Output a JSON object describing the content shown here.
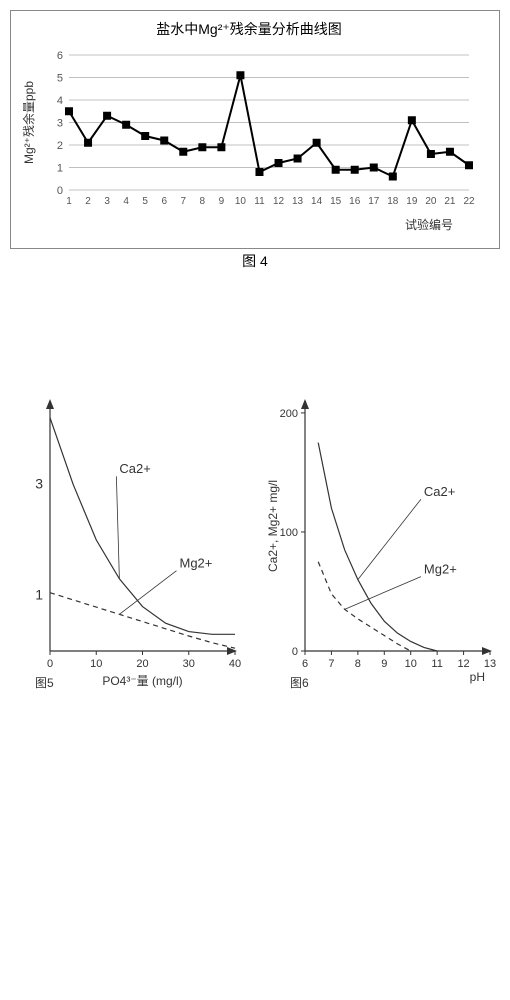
{
  "chart1": {
    "type": "line",
    "title": "盐水中Mg²⁺残余量分析曲线图",
    "ylabel": "Mg²⁺残余量ppb",
    "xlabel": "试验编号",
    "caption": "图 4",
    "xvalues": [
      1,
      2,
      3,
      4,
      5,
      6,
      7,
      8,
      9,
      10,
      11,
      12,
      13,
      14,
      15,
      16,
      17,
      18,
      19,
      20,
      21,
      22
    ],
    "yvalues": [
      3.5,
      2.1,
      3.3,
      2.9,
      2.4,
      2.2,
      1.7,
      1.9,
      1.9,
      5.1,
      0.8,
      1.2,
      1.4,
      2.1,
      0.9,
      0.9,
      1.0,
      0.6,
      3.1,
      1.6,
      1.7,
      1.1
    ],
    "ylim": [
      0,
      6
    ],
    "yticks": [
      0,
      1,
      2,
      3,
      4,
      5,
      6
    ],
    "line_color": "#000000",
    "marker": "square",
    "marker_size": 8,
    "line_width": 2,
    "grid_color": "#c0c0c0",
    "background_color": "#ffffff"
  },
  "chart2": {
    "type": "line",
    "caption": "图5",
    "xlabel": "PO4³⁻量 (mg/l)",
    "xticks": [
      0,
      10,
      20,
      30,
      40
    ],
    "yticks_text": [
      "1",
      "3"
    ],
    "series": [
      {
        "label": "Ca2+",
        "style": "solid",
        "color": "#333333",
        "x": [
          0,
          5,
          10,
          15,
          20,
          25,
          30,
          35,
          40
        ],
        "y": [
          4.2,
          3.0,
          2.0,
          1.3,
          0.8,
          0.5,
          0.35,
          0.3,
          0.3
        ]
      },
      {
        "label": "Mg2+",
        "style": "dashed",
        "color": "#333333",
        "x": [
          0,
          5,
          10,
          15,
          20,
          25,
          30,
          35,
          40
        ],
        "y": [
          1.05,
          0.92,
          0.79,
          0.66,
          0.53,
          0.4,
          0.27,
          0.15,
          0.05
        ]
      }
    ],
    "label_pos": {
      "Ca2+": [
        15,
        3.2
      ],
      "Mg2+": [
        28,
        1.5
      ]
    },
    "xlim": [
      0,
      40
    ],
    "ylim": [
      0,
      4.5
    ],
    "axis_color": "#333333",
    "line_width": 1.2
  },
  "chart3": {
    "type": "line",
    "caption": "图6",
    "xlabel": "pH",
    "ylabel": "Ca2+, Mg2+  mg/l",
    "xticks": [
      6,
      7,
      8,
      9,
      10,
      11,
      12,
      13
    ],
    "yticks": [
      0,
      100,
      200
    ],
    "series": [
      {
        "label": "Ca2+",
        "style": "solid",
        "color": "#333333",
        "x": [
          6.5,
          7,
          7.5,
          8,
          8.5,
          9,
          9.5,
          10,
          10.5,
          11
        ],
        "y": [
          175,
          120,
          85,
          60,
          40,
          25,
          15,
          8,
          3,
          0
        ]
      },
      {
        "label": "Mg2+",
        "style": "dashed",
        "color": "#333333",
        "x": [
          6.5,
          7,
          7.5,
          8,
          8.5,
          9,
          9.5,
          10
        ],
        "y": [
          75,
          48,
          35,
          27,
          20,
          13,
          6,
          0
        ]
      }
    ],
    "label_pos": {
      "Ca2+": [
        10.5,
        130
      ],
      "Mg2+": [
        10.5,
        65
      ]
    },
    "xlim": [
      6,
      13
    ],
    "ylim": [
      0,
      210
    ],
    "axis_color": "#333333",
    "line_width": 1.2
  }
}
